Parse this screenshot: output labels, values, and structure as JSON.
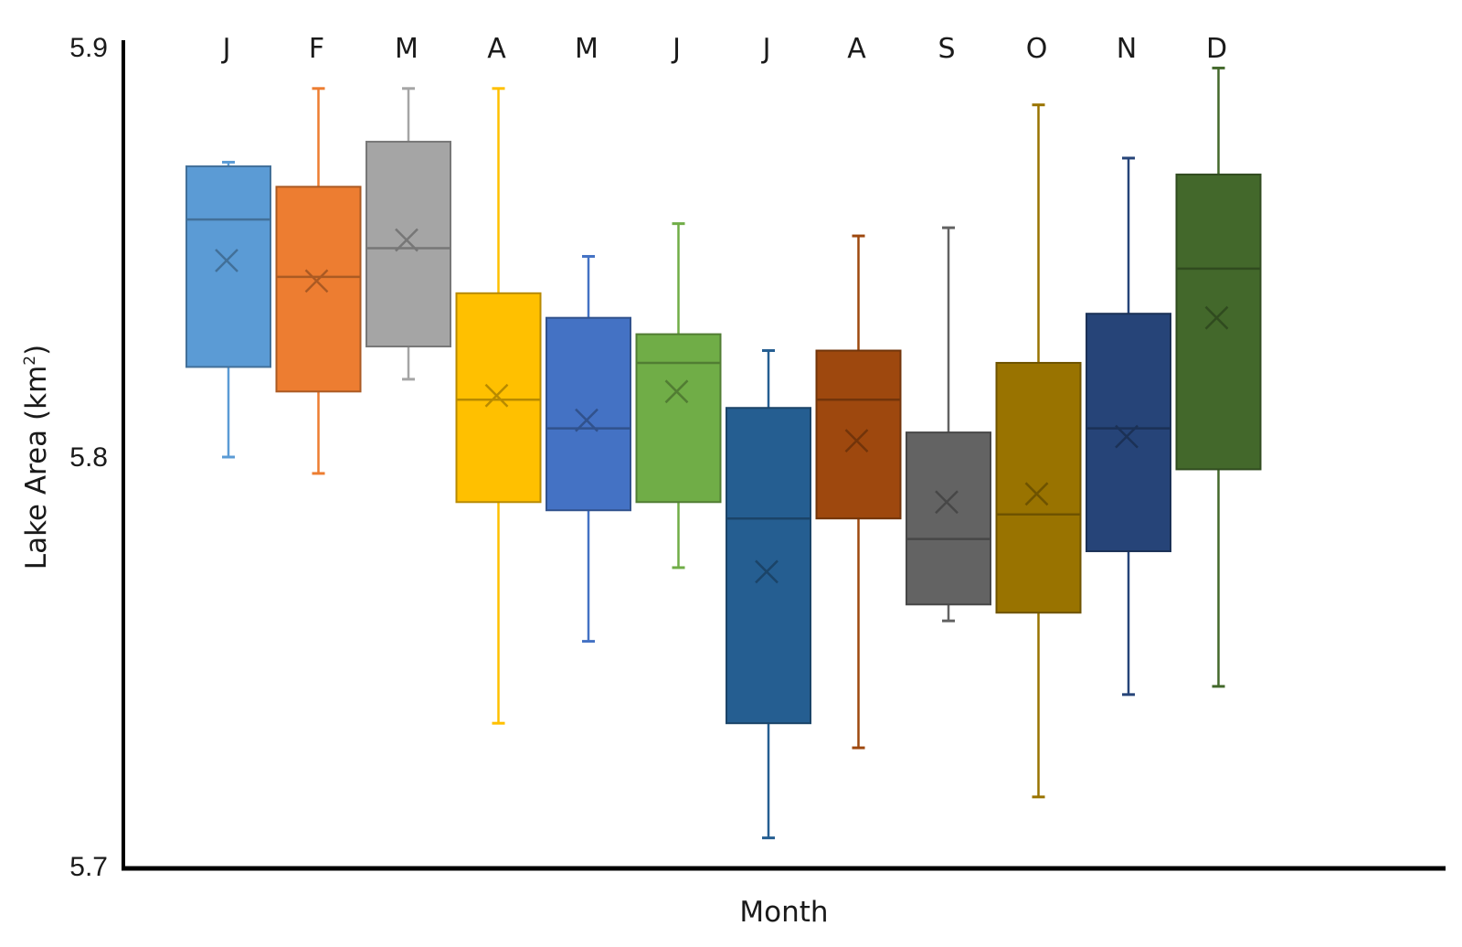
{
  "chart_data": {
    "type": "box",
    "title": "",
    "xlabel": "Month",
    "ylabel": {
      "text": "Lake Area (km",
      "superscript": "2",
      "suffix": ")"
    },
    "ylim": [
      5.7,
      5.9
    ],
    "yticks": [
      "5.7",
      "5.8",
      "5.9"
    ],
    "grid": false,
    "legend": "none",
    "categories": [
      "J",
      "F",
      "M",
      "A",
      "M",
      "J",
      "J",
      "A",
      "S",
      "O",
      "N",
      "D"
    ],
    "series": [
      {
        "name": "Jan",
        "color": "#5B9BD5",
        "whisker_low": 5.8,
        "q1": 5.822,
        "median": 5.858,
        "q3": 5.871,
        "whisker_high": 5.872,
        "mean": 5.848
      },
      {
        "name": "Feb",
        "color": "#ED7D31",
        "whisker_low": 5.796,
        "q1": 5.816,
        "median": 5.844,
        "q3": 5.866,
        "whisker_high": 5.89,
        "mean": 5.843
      },
      {
        "name": "Mar",
        "color": "#A5A5A5",
        "whisker_low": 5.819,
        "q1": 5.827,
        "median": 5.851,
        "q3": 5.877,
        "whisker_high": 5.89,
        "mean": 5.853
      },
      {
        "name": "Apr",
        "color": "#FFC000",
        "whisker_low": 5.735,
        "q1": 5.789,
        "median": 5.814,
        "q3": 5.84,
        "whisker_high": 5.89,
        "mean": 5.815
      },
      {
        "name": "May",
        "color": "#4472C4",
        "whisker_low": 5.755,
        "q1": 5.787,
        "median": 5.807,
        "q3": 5.834,
        "whisker_high": 5.849,
        "mean": 5.809
      },
      {
        "name": "Jun",
        "color": "#70AD47",
        "whisker_low": 5.773,
        "q1": 5.789,
        "median": 5.823,
        "q3": 5.83,
        "whisker_high": 5.857,
        "mean": 5.816
      },
      {
        "name": "Jul",
        "color": "#255E91",
        "whisker_low": 5.707,
        "q1": 5.735,
        "median": 5.785,
        "q3": 5.812,
        "whisker_high": 5.826,
        "mean": 5.772
      },
      {
        "name": "Aug",
        "color": "#9E480E",
        "whisker_low": 5.729,
        "q1": 5.785,
        "median": 5.814,
        "q3": 5.826,
        "whisker_high": 5.854,
        "mean": 5.804
      },
      {
        "name": "Sep",
        "color": "#636363",
        "whisker_low": 5.76,
        "q1": 5.764,
        "median": 5.78,
        "q3": 5.806,
        "whisker_high": 5.856,
        "mean": 5.789
      },
      {
        "name": "Oct",
        "color": "#997300",
        "whisker_low": 5.717,
        "q1": 5.762,
        "median": 5.786,
        "q3": 5.823,
        "whisker_high": 5.886,
        "mean": 5.791
      },
      {
        "name": "Nov",
        "color": "#264478",
        "whisker_low": 5.742,
        "q1": 5.777,
        "median": 5.807,
        "q3": 5.835,
        "whisker_high": 5.873,
        "mean": 5.805
      },
      {
        "name": "Dec",
        "color": "#43682B",
        "whisker_low": 5.744,
        "q1": 5.797,
        "median": 5.846,
        "q3": 5.869,
        "whisker_high": 5.895,
        "mean": 5.834
      }
    ]
  }
}
